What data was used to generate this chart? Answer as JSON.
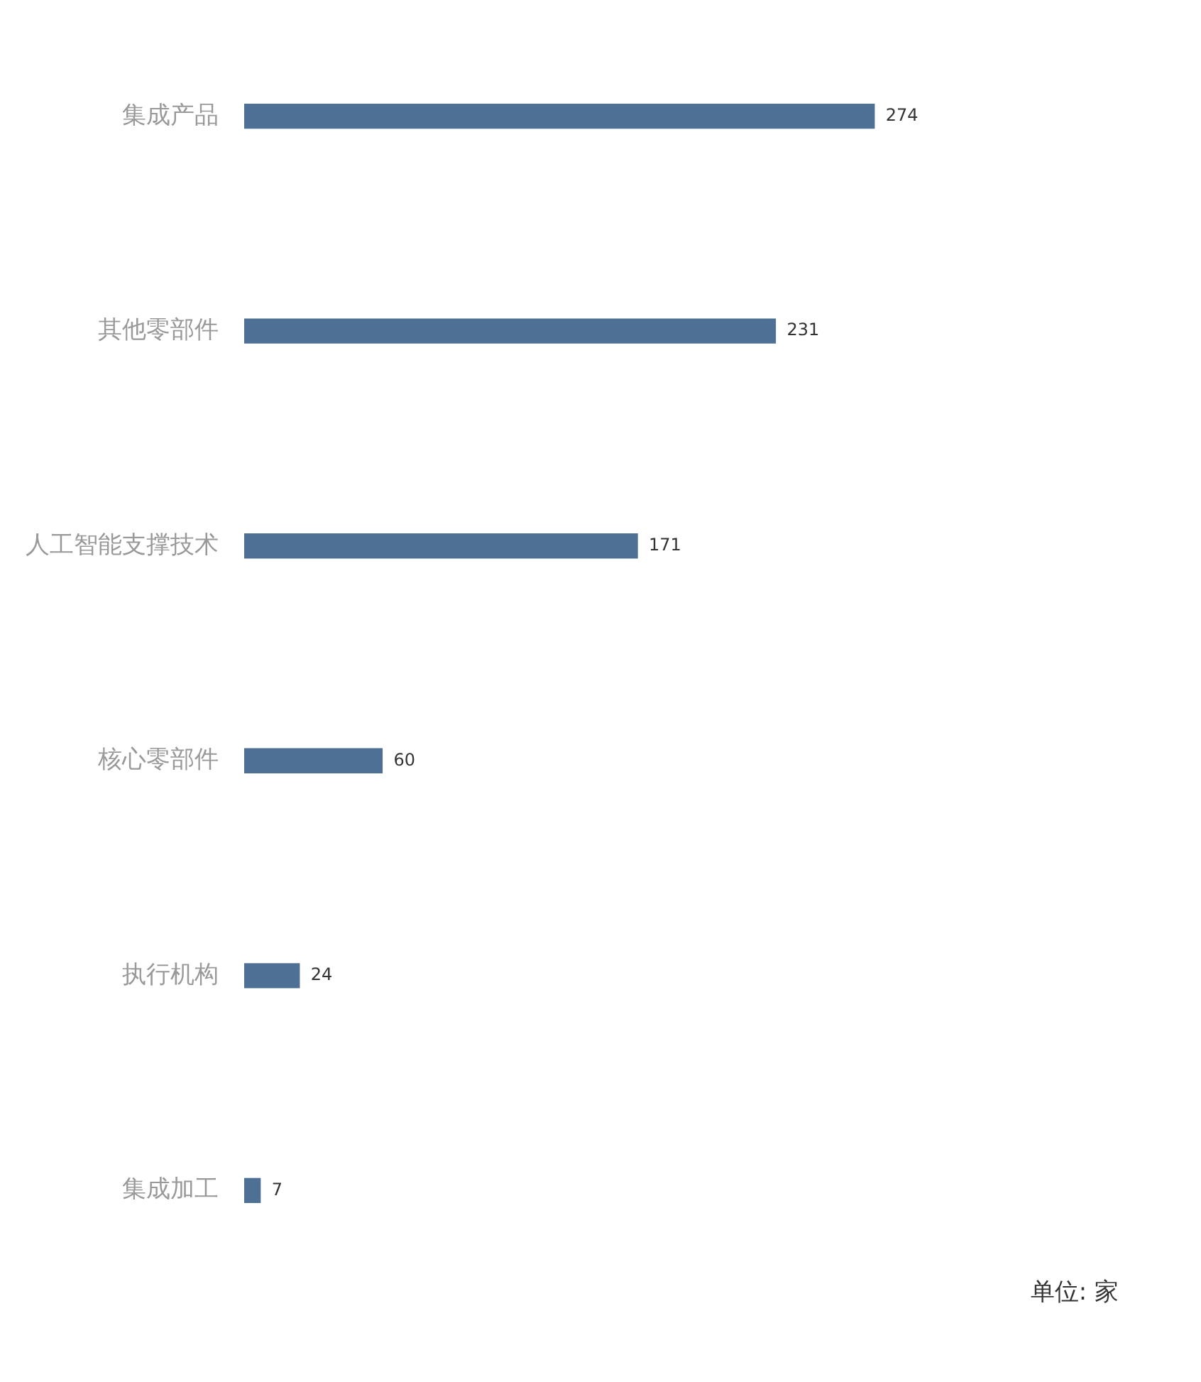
{
  "chart_data": {
    "type": "bar",
    "orientation": "horizontal",
    "categories": [
      "集成产品",
      "其他零部件",
      "人工智能支撑技术",
      "核心零部件",
      "执行机构",
      "集成加工"
    ],
    "values": [
      274,
      231,
      171,
      60,
      24,
      7
    ],
    "color": "#4e7094",
    "data_labels": true,
    "legend": false,
    "annotations": [
      "单位: 家"
    ]
  }
}
